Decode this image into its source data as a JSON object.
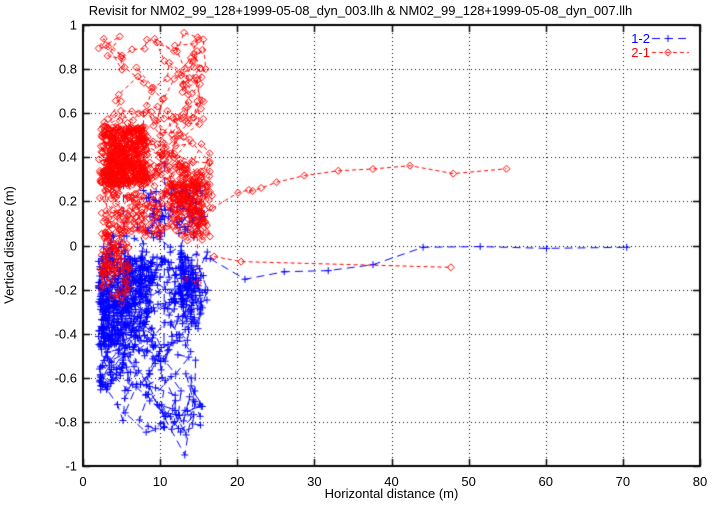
{
  "title": "Revisit for NM02_99_128+1999-05-08_dyn_003.llh & NM02_99_128+1999-05-08_dyn_007.llh",
  "chart_data": {
    "type": "scatter",
    "title": "Revisit for NM02_99_128+1999-05-08_dyn_003.llh & NM02_99_128+1999-05-08_dyn_007.llh",
    "xlabel": "Horizontal distance (m)",
    "ylabel": "Vertical distance (m)",
    "xlim": [
      0,
      80
    ],
    "ylim": [
      -1,
      1
    ],
    "x_tick_labels": [
      "0",
      "10",
      "20",
      "30",
      "40",
      "50",
      "60",
      "70",
      "80"
    ],
    "y_tick_labels": [
      "-1",
      "-0.8",
      "-0.6",
      "-0.4",
      "-0.2",
      "0",
      "0.2",
      "0.4",
      "0.6",
      "0.8",
      "1"
    ],
    "grid": "dotted",
    "grid_color": "#000000",
    "background": "#ffffff",
    "legend_position": "top-right-inside",
    "series": [
      {
        "name": "1-2",
        "color": "#0000ff",
        "marker": "plus",
        "linestyle": "dashed",
        "dash": [
          8,
          5
        ],
        "cluster_summary": "dense tangled cluster x 2-16 m, y -0.86 to +0.27 m, densest near y -0.1 to -0.45; sparse web below -0.55 down to -0.95",
        "cluster_walks": [
          {
            "seed": 101,
            "count": 500,
            "x_range": [
              2.0,
              15.3
            ],
            "y_range": [
              -0.46,
              -0.05
            ],
            "step": [
              1.7,
              0.07
            ]
          },
          {
            "seed": 102,
            "count": 170,
            "x_range": [
              2.5,
              15.8
            ],
            "y_range": [
              -0.2,
              0.27
            ],
            "step": [
              2.2,
              0.09
            ]
          },
          {
            "seed": 103,
            "count": 130,
            "x_range": [
              2.0,
              14.0
            ],
            "y_range": [
              -0.66,
              -0.34
            ],
            "step": [
              2.2,
              0.09
            ]
          },
          {
            "seed": 104,
            "count": 60,
            "x_range": [
              1.8,
              15.5
            ],
            "y_range": [
              -0.86,
              -0.55
            ],
            "step": [
              2.8,
              0.12
            ]
          },
          {
            "seed": 105,
            "count": 90,
            "x_range": [
              12.5,
              16.2
            ],
            "y_range": [
              -0.5,
              -0.02
            ],
            "step": [
              1.4,
              0.1
            ]
          }
        ],
        "segments": [
          [
            [
              16.5,
              -0.06
            ],
            [
              21.0,
              -0.153
            ],
            [
              26.1,
              -0.119
            ],
            [
              31.8,
              -0.114
            ],
            [
              37.6,
              -0.087
            ],
            [
              44.1,
              -0.008
            ],
            [
              51.5,
              -0.005
            ],
            [
              60.1,
              -0.013
            ],
            [
              70.5,
              -0.008
            ]
          ],
          [
            [
              14.6,
              -0.52
            ],
            [
              14.5,
              -0.66
            ],
            [
              13.2,
              -0.95
            ],
            [
              8.2,
              -0.63
            ]
          ],
          [
            [
              5.2,
              0.35
            ],
            [
              5.4,
              -0.18
            ]
          ],
          [
            [
              10.6,
              0.37
            ],
            [
              10.5,
              -0.45
            ]
          ]
        ]
      },
      {
        "name": "2-1",
        "color": "#ff0000",
        "marker": "diamond",
        "linestyle": "dashed",
        "dash": [
          4,
          3
        ],
        "cluster_summary": "dense tangled cluster x 2-17 m, y -0.40 to +0.97 m, densest near y 0.27 to 0.54; sparse loops above 0.55 up to 0.95",
        "cluster_walks": [
          {
            "seed": 201,
            "count": 430,
            "x_range": [
              2.2,
              8.5
            ],
            "y_range": [
              0.27,
              0.54
            ],
            "step": [
              1.3,
              0.06
            ]
          },
          {
            "seed": 202,
            "count": 340,
            "x_range": [
              2.0,
              16.5
            ],
            "y_range": [
              0.04,
              0.5
            ],
            "step": [
              2.4,
              0.09
            ]
          },
          {
            "seed": 203,
            "count": 110,
            "x_range": [
              2.0,
              15.8
            ],
            "y_range": [
              0.48,
              0.95
            ],
            "step": [
              2.6,
              0.11
            ]
          },
          {
            "seed": 204,
            "count": 90,
            "x_range": [
              2.2,
              6.0
            ],
            "y_range": [
              -0.4,
              0.2
            ],
            "step": [
              1.2,
              0.1
            ]
          },
          {
            "seed": 205,
            "count": 80,
            "x_range": [
              11.0,
              16.8
            ],
            "y_range": [
              0.02,
              0.3
            ],
            "step": [
              1.8,
              0.08
            ]
          }
        ],
        "segments": [
          [
            [
              16.8,
              0.17
            ],
            [
              20.1,
              0.239
            ],
            [
              21.5,
              0.252
            ],
            [
              22.0,
              0.247
            ],
            [
              23.1,
              0.261
            ],
            [
              25.1,
              0.287
            ],
            [
              28.7,
              0.317
            ],
            [
              33.1,
              0.339
            ],
            [
              37.6,
              0.347
            ],
            [
              42.4,
              0.362
            ],
            [
              48.0,
              0.326
            ],
            [
              54.9,
              0.348
            ]
          ],
          [
            [
              17.0,
              -0.05
            ],
            [
              20.5,
              -0.073
            ],
            [
              47.7,
              -0.099
            ]
          ],
          [
            [
              12.2,
              0.88
            ],
            [
              13.1,
              0.965
            ],
            [
              15.6,
              0.935
            ],
            [
              15.9,
              0.8
            ],
            [
              14.8,
              0.75
            ],
            [
              15.3,
              0.62
            ]
          ],
          [
            [
              14.8,
              0.1
            ],
            [
              14.9,
              -0.17
            ],
            [
              13.2,
              -0.15
            ]
          ]
        ]
      }
    ]
  }
}
